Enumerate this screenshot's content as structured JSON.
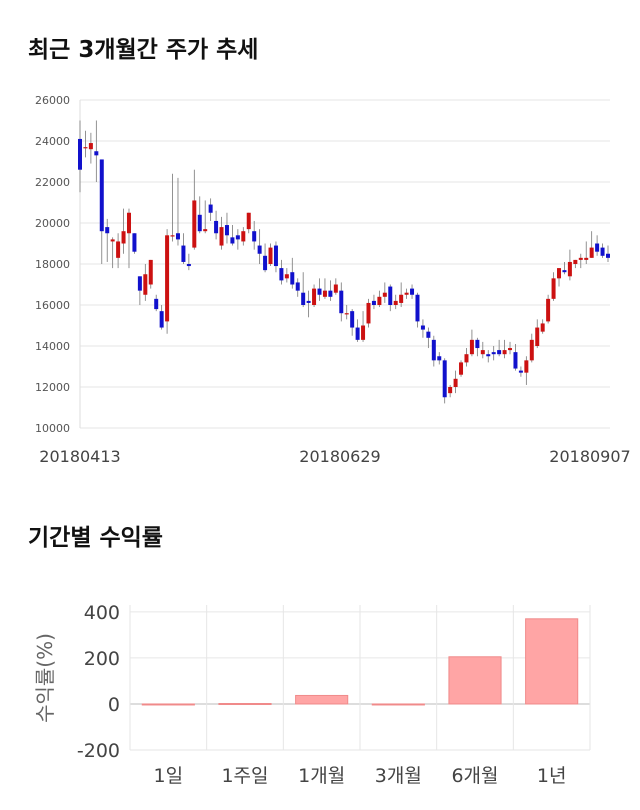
{
  "page": {
    "title_price": "최근 3개월간 주가 추세",
    "title_returns": "기간별 수익률"
  },
  "chart_data": [
    {
      "type": "candlestick",
      "yticks": [
        10000,
        12000,
        14000,
        16000,
        18000,
        20000,
        22000,
        24000,
        26000
      ],
      "ylim": [
        10000,
        26000
      ],
      "xticks": [
        "20180413",
        "20180629",
        "20180907"
      ],
      "grid": true,
      "up_color": "#cc1111",
      "down_color": "#1111cc",
      "candles": [
        [
          24100,
          22600,
          25000,
          21500
        ],
        [
          23700,
          23700,
          24500,
          23200
        ],
        [
          23600,
          23900,
          24400,
          22900
        ],
        [
          23500,
          23300,
          25000,
          22000
        ],
        [
          23100,
          19600,
          23100,
          18000
        ],
        [
          19800,
          19500,
          20200,
          18100
        ],
        [
          19100,
          19200,
          19300,
          17800
        ],
        [
          18300,
          19100,
          19500,
          17800
        ],
        [
          19000,
          19600,
          20700,
          18500
        ],
        [
          19500,
          20500,
          20700,
          17800
        ],
        [
          19500,
          18600,
          19500,
          18500
        ],
        [
          17400,
          16700,
          17400,
          16000
        ],
        [
          16500,
          17500,
          18000,
          16200
        ],
        [
          17000,
          18200,
          18200,
          16800
        ],
        [
          16300,
          15800,
          16500,
          15700
        ],
        [
          15700,
          14900,
          16000,
          14800
        ],
        [
          15200,
          19400,
          19700,
          14600
        ],
        [
          19400,
          19400,
          22400,
          19100
        ],
        [
          19500,
          19200,
          22200,
          18900
        ],
        [
          18900,
          18100,
          19500,
          18000
        ],
        [
          18000,
          17900,
          18500,
          17700
        ],
        [
          18800,
          21100,
          22600,
          18700
        ],
        [
          20400,
          19600,
          21300,
          19500
        ],
        [
          19600,
          19700,
          21100,
          19500
        ],
        [
          20900,
          20500,
          21200,
          20100
        ],
        [
          20100,
          19500,
          20600,
          19200
        ],
        [
          18900,
          19800,
          20300,
          18700
        ],
        [
          19900,
          19400,
          20500,
          19000
        ],
        [
          19300,
          19000,
          19900,
          18900
        ],
        [
          19400,
          19200,
          19700,
          18700
        ],
        [
          19100,
          19600,
          19800,
          18900
        ],
        [
          19700,
          20500,
          20500,
          19500
        ],
        [
          19600,
          19100,
          20100,
          18700
        ],
        [
          18900,
          18500,
          19700,
          18000
        ],
        [
          18400,
          17700,
          19000,
          17600
        ],
        [
          18000,
          18800,
          19000,
          17900
        ],
        [
          18900,
          17900,
          19100,
          17600
        ],
        [
          17800,
          17200,
          18200,
          17000
        ],
        [
          17300,
          17500,
          17800,
          17100
        ],
        [
          17600,
          17000,
          18300,
          16800
        ],
        [
          17100,
          16700,
          17300,
          16400
        ],
        [
          16600,
          16000,
          17600,
          15900
        ],
        [
          16200,
          16100,
          16700,
          15400
        ],
        [
          16000,
          16800,
          17000,
          15900
        ],
        [
          16800,
          16500,
          17300,
          16200
        ],
        [
          16400,
          16700,
          17300,
          16300
        ],
        [
          16700,
          16400,
          17200,
          16200
        ],
        [
          16600,
          17000,
          17300,
          16500
        ],
        [
          16700,
          15600,
          17100,
          15200
        ],
        [
          15600,
          15600,
          16000,
          15300
        ],
        [
          15700,
          14900,
          15800,
          14500
        ],
        [
          14900,
          14300,
          15300,
          14200
        ],
        [
          14300,
          15000,
          15700,
          14200
        ],
        [
          15100,
          16100,
          16300,
          14900
        ],
        [
          16200,
          16000,
          16500,
          15800
        ],
        [
          16000,
          16400,
          16700,
          15900
        ],
        [
          16400,
          16600,
          17100,
          16100
        ],
        [
          16900,
          16000,
          17000,
          15700
        ],
        [
          16000,
          16200,
          16500,
          15800
        ],
        [
          16100,
          16500,
          17100,
          15900
        ],
        [
          16500,
          16600,
          16800,
          16300
        ],
        [
          16800,
          16500,
          17000,
          16300
        ],
        [
          16500,
          15200,
          16600,
          14900
        ],
        [
          15000,
          14800,
          15300,
          14400
        ],
        [
          14700,
          14400,
          14900,
          13900
        ],
        [
          14300,
          13300,
          14500,
          13000
        ],
        [
          13500,
          13300,
          13700,
          13100
        ],
        [
          13300,
          11500,
          13400,
          11200
        ],
        [
          11700,
          12000,
          12100,
          11500
        ],
        [
          12000,
          12400,
          12800,
          11700
        ],
        [
          12600,
          13200,
          13300,
          12500
        ],
        [
          13200,
          13600,
          13900,
          13000
        ],
        [
          13600,
          14300,
          14800,
          13500
        ],
        [
          14300,
          13900,
          14400,
          13500
        ],
        [
          13600,
          13800,
          14200,
          13400
        ],
        [
          13600,
          13500,
          13800,
          13200
        ],
        [
          13700,
          13600,
          14000,
          13300
        ],
        [
          13800,
          13600,
          14300,
          13500
        ],
        [
          13600,
          13800,
          14300,
          13400
        ],
        [
          13800,
          13900,
          14200,
          13600
        ],
        [
          13700,
          12900,
          14100,
          12800
        ],
        [
          12800,
          12700,
          13000,
          12500
        ],
        [
          12700,
          13300,
          13500,
          12100
        ],
        [
          13300,
          14300,
          14600,
          13200
        ],
        [
          14000,
          14900,
          15300,
          13900
        ],
        [
          14700,
          15100,
          15300,
          14600
        ],
        [
          15200,
          16300,
          16500,
          15100
        ],
        [
          16300,
          17300,
          17600,
          16200
        ],
        [
          17300,
          17800,
          17800,
          16900
        ],
        [
          17700,
          17600,
          18100,
          17500
        ],
        [
          17400,
          18100,
          18700,
          17200
        ],
        [
          18000,
          18200,
          18200,
          17800
        ],
        [
          18200,
          18300,
          18500,
          17800
        ],
        [
          18200,
          18300,
          19100,
          18000
        ],
        [
          18300,
          18800,
          19600,
          18300
        ],
        [
          19000,
          18600,
          19400,
          18400
        ],
        [
          18800,
          18400,
          19000,
          18300
        ],
        [
          18500,
          18300,
          18900,
          18100
        ]
      ]
    },
    {
      "type": "bar",
      "ylabel": "수익률(%)",
      "categories": [
        "1일",
        "1주일",
        "1개월",
        "3개월",
        "6개월",
        "1년"
      ],
      "values": [
        0,
        2,
        37,
        -2,
        205,
        370
      ],
      "yticks": [
        -200,
        0,
        200,
        400
      ],
      "ylim": [
        -200,
        430
      ],
      "bar_color": "#ffa5a5",
      "bar_edge": "#f08a8a"
    }
  ]
}
